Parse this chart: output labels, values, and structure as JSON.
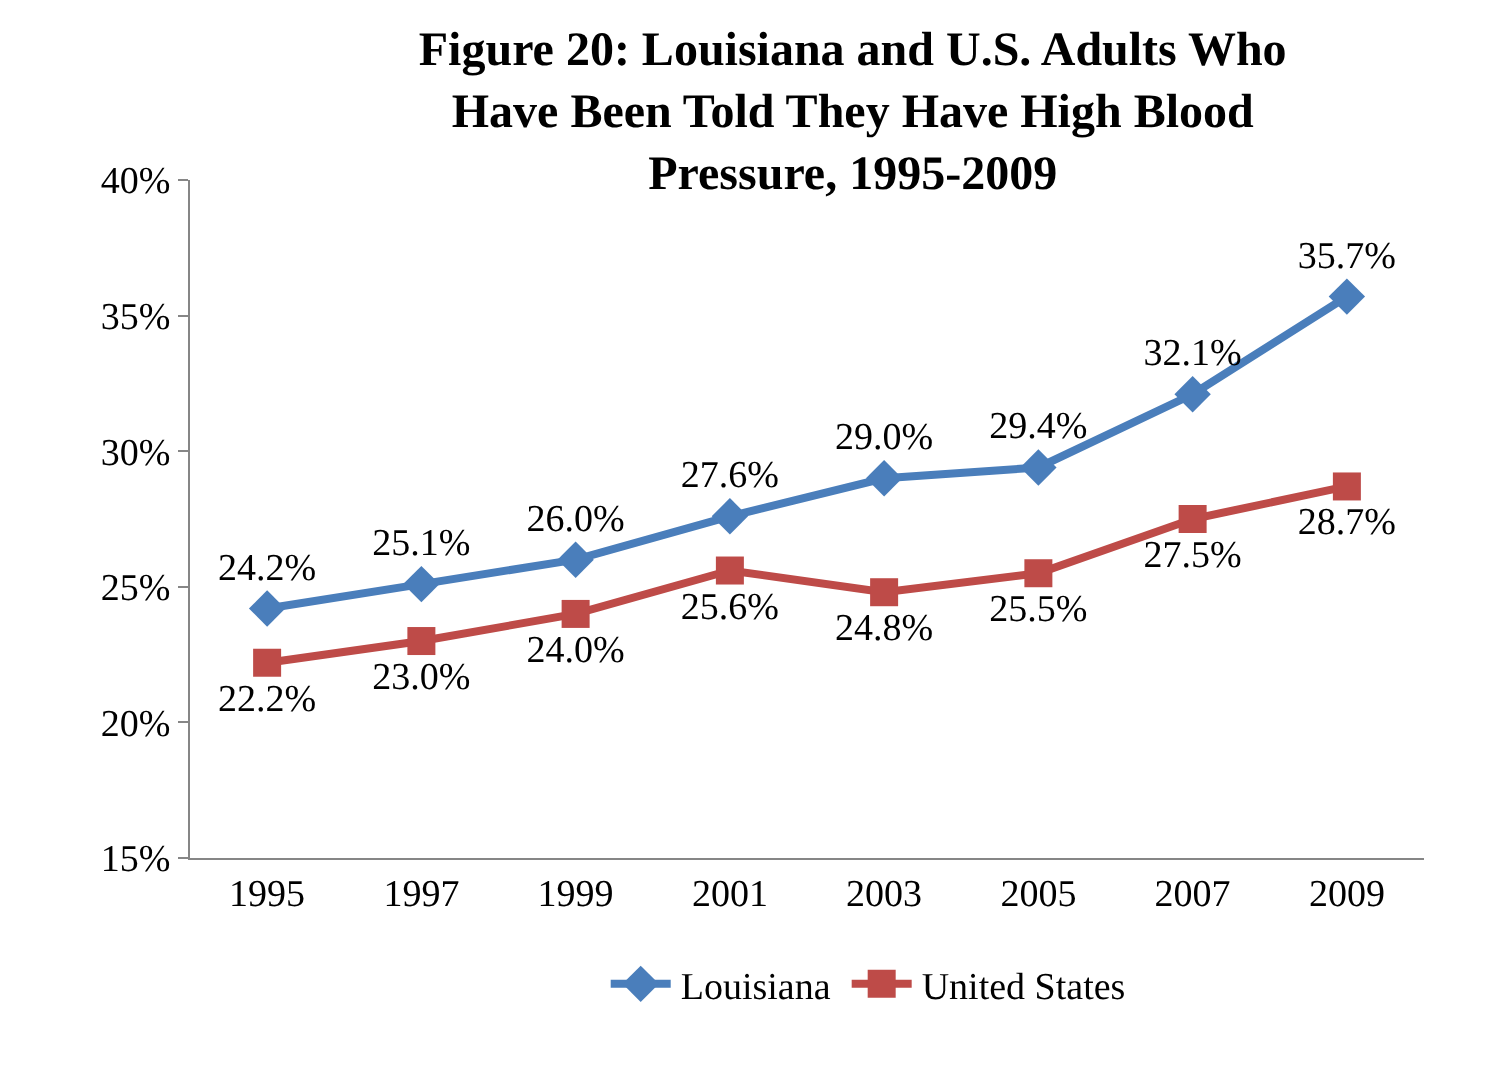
{
  "chart_data": {
    "type": "line",
    "title": "Figure 20: Louisiana and U.S. Adults Who Have Been Told They Have High Blood Pressure, 1995-2009",
    "categories": [
      "1995",
      "1997",
      "1999",
      "2001",
      "2003",
      "2005",
      "2007",
      "2009"
    ],
    "series": [
      {
        "name": "Louisiana",
        "color": "#4a7ebb",
        "marker": "diamond",
        "values": [
          24.2,
          25.1,
          26.0,
          27.6,
          29.0,
          29.4,
          32.1,
          35.7
        ],
        "value_labels": [
          "24.2%",
          "25.1%",
          "26.0%",
          "27.6%",
          "29.0%",
          "29.4%",
          "32.1%",
          "35.7%"
        ]
      },
      {
        "name": "United States",
        "color": "#be4b48",
        "marker": "square",
        "values": [
          22.2,
          23.0,
          24.0,
          25.6,
          24.8,
          25.5,
          27.5,
          28.7
        ],
        "value_labels": [
          "22.2%",
          "23.0%",
          "24.0%",
          "25.6%",
          "24.8%",
          "25.5%",
          "27.5%",
          "28.7%"
        ]
      }
    ],
    "ylim": [
      15,
      40
    ],
    "yticks": [
      {
        "value": 15,
        "label": "15%"
      },
      {
        "value": 20,
        "label": "20%"
      },
      {
        "value": 25,
        "label": "25%"
      },
      {
        "value": 30,
        "label": "30%"
      },
      {
        "value": 35,
        "label": "35%"
      },
      {
        "value": 40,
        "label": "40%"
      }
    ],
    "legend": "bottom",
    "line_style": "solid"
  }
}
